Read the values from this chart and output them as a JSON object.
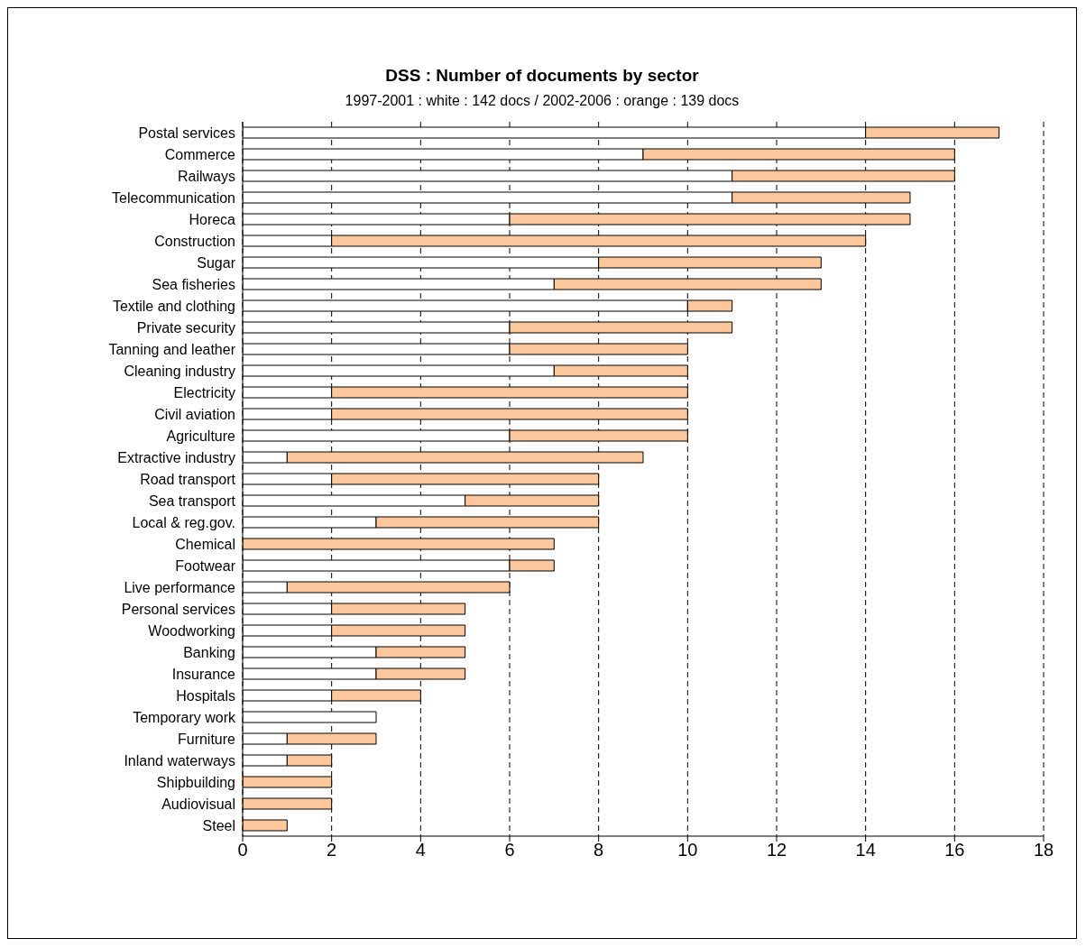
{
  "chart_data": {
    "type": "bar",
    "orientation": "horizontal",
    "stacked": true,
    "title": "DSS : Number of documents by sector",
    "subtitle": "1997-2001 : white : 142 docs / 2002-2006 : orange : 139 docs",
    "categories": [
      "Postal services",
      "Commerce",
      "Railways",
      "Telecommunication",
      "Horeca",
      "Construction",
      "Sugar",
      "Sea fisheries",
      "Textile and clothing",
      "Private security",
      "Tanning and leather",
      "Cleaning industry",
      "Electricity",
      "Civil aviation",
      "Agriculture",
      "Extractive industry",
      "Road transport",
      "Sea transport",
      "Local & reg.gov.",
      "Chemical",
      "Footwear",
      "Live performance",
      "Personal services",
      "Woodworking",
      "Banking",
      "Insurance",
      "Hospitals",
      "Temporary work",
      "Furniture",
      "Inland waterways",
      "Shipbuilding",
      "Audiovisual",
      "Steel"
    ],
    "series": [
      {
        "color": "#ffffff",
        "values": [
          14,
          9,
          11,
          11,
          6,
          2,
          8,
          7,
          10,
          6,
          6,
          7,
          2,
          2,
          6,
          1,
          2,
          5,
          3,
          0,
          6,
          1,
          2,
          2,
          3,
          3,
          2,
          3,
          1,
          1,
          0,
          0,
          0
        ]
      },
      {
        "color": "#fcc89b",
        "values": [
          3,
          7,
          5,
          4,
          9,
          12,
          5,
          6,
          1,
          5,
          4,
          3,
          8,
          8,
          4,
          8,
          6,
          3,
          5,
          7,
          1,
          5,
          3,
          3,
          2,
          2,
          2,
          0,
          2,
          1,
          2,
          2,
          1
        ]
      }
    ],
    "xlim": [
      0,
      18
    ],
    "xticks": [
      0,
      2,
      4,
      6,
      8,
      10,
      12,
      14,
      16,
      18
    ],
    "grid": "x"
  }
}
